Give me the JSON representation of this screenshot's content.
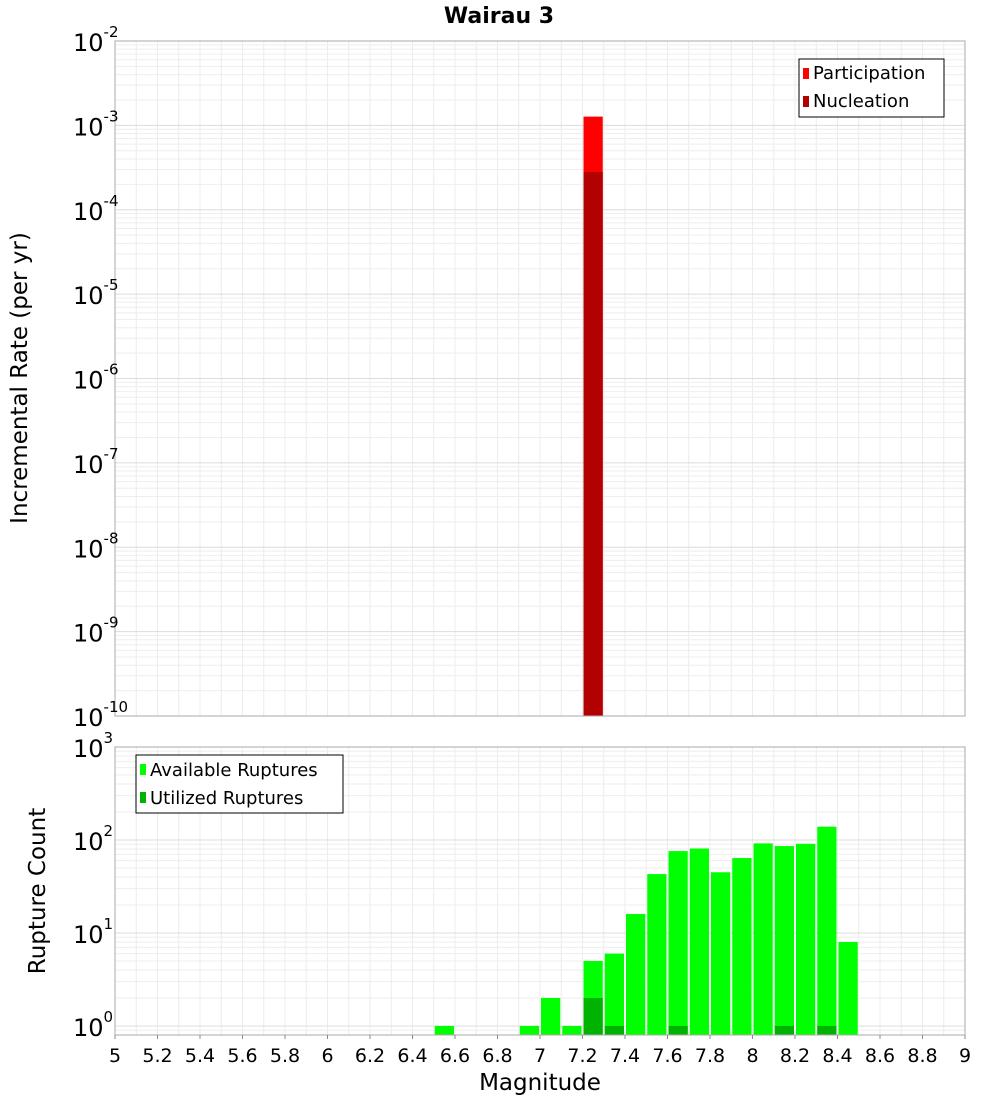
{
  "title": "Wairau 3",
  "colors": {
    "participation": "#ff0000",
    "nucleation": "#b30000",
    "available": "#00ff00",
    "utilized": "#00b300"
  },
  "chart_data": [
    {
      "type": "bar",
      "title": "Wairau 3",
      "xlabel": "Magnitude",
      "ylabel": "Incremental Rate (per yr)",
      "xlim": [
        5,
        9
      ],
      "ylim": [
        1e-10,
        0.01
      ],
      "yscale": "log",
      "grid": true,
      "legend_position": "top-right",
      "x_ticks": [
        "5",
        "5.2",
        "5.4",
        "5.6",
        "5.8",
        "6",
        "6.2",
        "6.4",
        "6.6",
        "6.8",
        "7",
        "7.2",
        "7.4",
        "7.6",
        "7.8",
        "8",
        "8.2",
        "8.4",
        "8.6",
        "8.8",
        "9"
      ],
      "y_ticks": [
        {
          "base": "10",
          "exp": "-10"
        },
        {
          "base": "10",
          "exp": "-9"
        },
        {
          "base": "10",
          "exp": "-8"
        },
        {
          "base": "10",
          "exp": "-7"
        },
        {
          "base": "10",
          "exp": "-6"
        },
        {
          "base": "10",
          "exp": "-5"
        },
        {
          "base": "10",
          "exp": "-4"
        },
        {
          "base": "10",
          "exp": "-3"
        },
        {
          "base": "10",
          "exp": "-2"
        }
      ],
      "bin_width": 0.1,
      "series": [
        {
          "name": "Participation",
          "color": "#ff0000",
          "x": [
            7.25
          ],
          "values": [
            0.00127
          ]
        },
        {
          "name": "Nucleation",
          "color": "#b30000",
          "x": [
            7.25
          ],
          "values": [
            0.00028
          ]
        }
      ]
    },
    {
      "type": "bar",
      "xlabel": "Magnitude",
      "ylabel": "Rupture Count",
      "xlim": [
        5,
        9
      ],
      "ylim": [
        0.8,
        1000
      ],
      "yscale": "log",
      "grid": true,
      "legend_position": "top-left",
      "y_ticks": [
        {
          "base": "10",
          "exp": "0"
        },
        {
          "base": "10",
          "exp": "1"
        },
        {
          "base": "10",
          "exp": "2"
        },
        {
          "base": "10",
          "exp": "3"
        }
      ],
      "bin_width": 0.1,
      "series": [
        {
          "name": "Available Ruptures",
          "color": "#00ff00",
          "x": [
            6.55,
            6.95,
            7.05,
            7.15,
            7.25,
            7.35,
            7.45,
            7.55,
            7.65,
            7.75,
            7.85,
            7.95,
            8.05,
            8.15,
            8.25,
            8.35,
            8.45
          ],
          "values": [
            1,
            1,
            2,
            1,
            5,
            6,
            16,
            43,
            76,
            81,
            45,
            64,
            92,
            86,
            91,
            139,
            8
          ]
        },
        {
          "name": "Utilized Ruptures",
          "color": "#00b300",
          "x": [
            7.25,
            7.35,
            7.65,
            8.15,
            8.35
          ],
          "values": [
            2,
            1,
            1,
            1,
            1
          ]
        }
      ]
    }
  ]
}
